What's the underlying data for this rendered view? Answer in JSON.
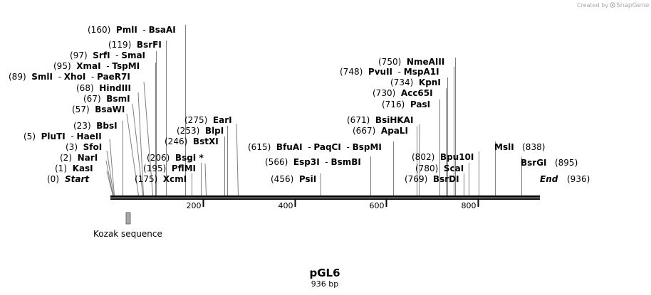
{
  "credit": {
    "created_by": "Created by",
    "brand": "SnapGene"
  },
  "plasmid": {
    "name": "pGL6",
    "length_label": "936 bp"
  },
  "axis": {
    "start": 0,
    "end": 936,
    "ticks": [
      200,
      400,
      600,
      800
    ]
  },
  "start_label": {
    "pos": "(0)",
    "name": "Start"
  },
  "end_label": {
    "pos": "(936)",
    "name": "End"
  },
  "feature": {
    "name": "Kozak sequence",
    "color": "#a8a8a8"
  },
  "sites": [
    {
      "pos": "(1)",
      "names": [
        "KasI"
      ],
      "loc": 1
    },
    {
      "pos": "(2)",
      "names": [
        "NarI"
      ],
      "loc": 2
    },
    {
      "pos": "(3)",
      "names": [
        "SfoI"
      ],
      "loc": 3
    },
    {
      "pos": "(5)",
      "names": [
        "PluTI",
        "HaeII"
      ],
      "loc": 5
    },
    {
      "pos": "(23)",
      "names": [
        "BbsI"
      ],
      "loc": 23
    },
    {
      "pos": "(57)",
      "names": [
        "BsaWI"
      ],
      "loc": 57
    },
    {
      "pos": "(67)",
      "names": [
        "BsmI"
      ],
      "loc": 67
    },
    {
      "pos": "(68)",
      "names": [
        "HindIII"
      ],
      "loc": 68
    },
    {
      "pos": "(89)",
      "names": [
        "SmlI",
        "XhoI",
        "PaeR7I"
      ],
      "loc": 89
    },
    {
      "pos": "(95)",
      "names": [
        "XmaI",
        "TspMI"
      ],
      "loc": 95
    },
    {
      "pos": "(97)",
      "names": [
        "SrfI",
        "SmaI"
      ],
      "loc": 97
    },
    {
      "pos": "(119)",
      "names": [
        "BsrFI"
      ],
      "loc": 119
    },
    {
      "pos": "(160)",
      "names": [
        "PmlI",
        "BsaAI"
      ],
      "loc": 160
    },
    {
      "pos": "(175)",
      "names": [
        "XcmI"
      ],
      "loc": 175
    },
    {
      "pos": "(195)",
      "names": [
        "PflMI"
      ],
      "loc": 195
    },
    {
      "pos": "(206)",
      "names": [
        "BsgI *"
      ],
      "loc": 206
    },
    {
      "pos": "(246)",
      "names": [
        "BstXI"
      ],
      "loc": 246
    },
    {
      "pos": "(253)",
      "names": [
        "BlpI"
      ],
      "loc": 253
    },
    {
      "pos": "(275)",
      "names": [
        "EarI"
      ],
      "loc": 275
    },
    {
      "pos": "(456)",
      "names": [
        "PsiI"
      ],
      "loc": 456
    },
    {
      "pos": "(566)",
      "names": [
        "Esp3I",
        "BsmBI"
      ],
      "loc": 566
    },
    {
      "pos": "(615)",
      "names": [
        "BfuAI",
        "PaqCI",
        "BspMI"
      ],
      "loc": 615
    },
    {
      "pos": "(667)",
      "names": [
        "ApaLI"
      ],
      "loc": 667
    },
    {
      "pos": "(671)",
      "names": [
        "BsiHKAI"
      ],
      "loc": 671
    },
    {
      "pos": "(716)",
      "names": [
        "PasI"
      ],
      "loc": 716
    },
    {
      "pos": "(730)",
      "names": [
        "Acc65I"
      ],
      "loc": 730
    },
    {
      "pos": "(734)",
      "names": [
        "KpnI"
      ],
      "loc": 734
    },
    {
      "pos": "(748)",
      "names": [
        "PvuII",
        "MspA1I"
      ],
      "loc": 748
    },
    {
      "pos": "(750)",
      "names": [
        "NmeAIII"
      ],
      "loc": 750
    },
    {
      "pos": "(769)",
      "names": [
        "BsrDI"
      ],
      "loc": 769
    },
    {
      "pos": "(780)",
      "names": [
        "ScaI"
      ],
      "loc": 780
    },
    {
      "pos": "(802)",
      "names": [
        "Bpu10I"
      ],
      "loc": 802
    },
    {
      "pos": "(838)",
      "names": [
        "MslI"
      ],
      "loc": 838
    },
    {
      "pos": "(895)",
      "names": [
        "BsrGI"
      ],
      "loc": 895
    }
  ]
}
